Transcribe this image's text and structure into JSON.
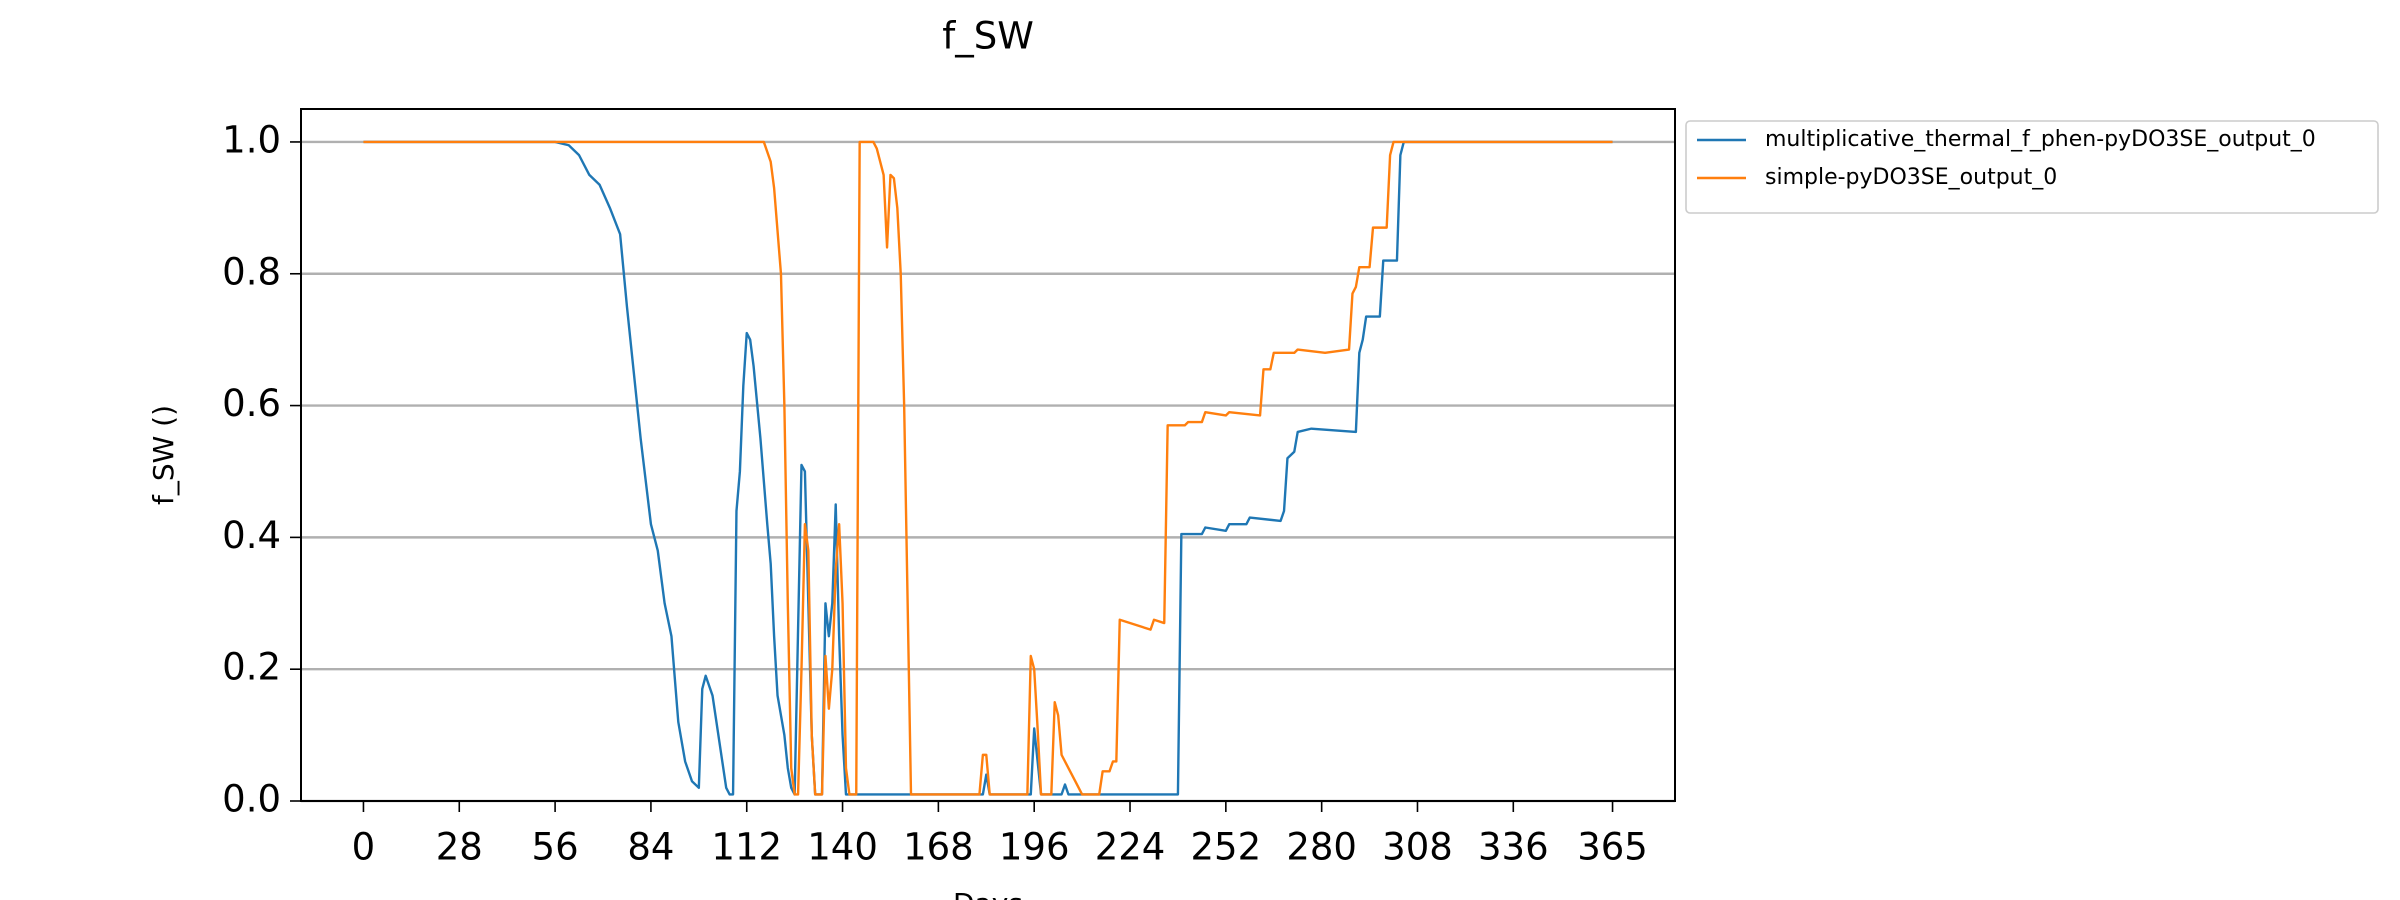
{
  "chart_data": {
    "type": "line",
    "title": "f_SW",
    "xlabel": "Days",
    "ylabel": "f_SW ()",
    "xlim": [
      -18.25,
      383.25
    ],
    "ylim": [
      0,
      1.05
    ],
    "xticks": [
      0,
      28,
      56,
      84,
      112,
      140,
      168,
      196,
      224,
      252,
      280,
      308,
      336,
      365
    ],
    "yticks": [
      {
        "value": 0,
        "label": "0.0"
      },
      0.2,
      0.4,
      0.6,
      0.8,
      {
        "value": 1,
        "label": "1.0"
      }
    ],
    "grid": "y",
    "legend": "outside-upper-right",
    "series": [
      {
        "name": "multiplicative_thermal_f_phen-pyDO3SE_output_0",
        "color": "#1f77b4",
        "x": [
          0,
          56,
          60,
          63,
          66,
          69,
          72,
          75,
          77,
          79,
          81,
          84,
          86,
          88,
          90,
          92,
          94,
          96,
          98,
          99,
          100,
          102,
          104,
          106,
          107,
          108,
          109,
          110,
          111,
          112,
          113,
          114,
          116,
          118,
          119,
          120,
          121,
          123,
          124,
          125,
          126,
          128,
          129,
          130,
          131,
          132,
          134,
          135,
          136,
          137,
          138,
          139,
          140,
          141,
          181,
          182,
          183,
          195,
          196,
          197,
          198,
          204,
          205,
          206,
          238,
          239,
          245,
          246,
          252,
          253,
          258,
          259,
          268,
          269,
          270,
          272,
          273,
          277,
          290,
          291,
          292,
          293,
          297,
          298,
          302,
          303,
          304,
          365
        ],
        "values": [
          1,
          1,
          0.995,
          0.98,
          0.95,
          0.935,
          0.9,
          0.86,
          0.75,
          0.65,
          0.55,
          0.42,
          0.38,
          0.3,
          0.25,
          0.12,
          0.06,
          0.03,
          0.02,
          0.17,
          0.19,
          0.16,
          0.09,
          0.02,
          0.01,
          0.01,
          0.44,
          0.5,
          0.63,
          0.71,
          0.7,
          0.66,
          0.55,
          0.42,
          0.36,
          0.25,
          0.16,
          0.1,
          0.05,
          0.02,
          0.01,
          0.51,
          0.5,
          0.3,
          0.1,
          0.01,
          0.01,
          0.3,
          0.25,
          0.3,
          0.45,
          0.25,
          0.1,
          0.01,
          0.01,
          0.04,
          0.01,
          0.01,
          0.11,
          0.06,
          0.01,
          0.01,
          0.025,
          0.01,
          0.01,
          0.405,
          0.405,
          0.415,
          0.41,
          0.42,
          0.42,
          0.43,
          0.425,
          0.44,
          0.52,
          0.53,
          0.56,
          0.565,
          0.56,
          0.68,
          0.7,
          0.735,
          0.735,
          0.82,
          0.82,
          0.98,
          1,
          1
        ]
      },
      {
        "name": "simple-pyDO3SE_output_0",
        "color": "#ff7f0e",
        "x": [
          0,
          117,
          119,
          120,
          122,
          123,
          124,
          125,
          126,
          127,
          128,
          129,
          130,
          131,
          132,
          134,
          135,
          136,
          137,
          138,
          139,
          140,
          141,
          142,
          144,
          145,
          149,
          150,
          152,
          153,
          154,
          155,
          156,
          157,
          158,
          160,
          180,
          181,
          182,
          183,
          194,
          195,
          196,
          197,
          198,
          201,
          202,
          203,
          204,
          206,
          208,
          210,
          215,
          216,
          218,
          219,
          220,
          221,
          230,
          231,
          234,
          235,
          240,
          241,
          245,
          246,
          252,
          253,
          262,
          263,
          265,
          266,
          272,
          273,
          281,
          288,
          289,
          290,
          291,
          294,
          295,
          299,
          300,
          301,
          365
        ],
        "values": [
          1,
          1,
          0.97,
          0.93,
          0.8,
          0.6,
          0.3,
          0.05,
          0.01,
          0.01,
          0.2,
          0.42,
          0.38,
          0.1,
          0.01,
          0.01,
          0.22,
          0.14,
          0.2,
          0.35,
          0.42,
          0.3,
          0.05,
          0.01,
          0.01,
          1,
          1,
          0.99,
          0.95,
          0.84,
          0.95,
          0.945,
          0.9,
          0.8,
          0.6,
          0.01,
          0.01,
          0.07,
          0.07,
          0.01,
          0.01,
          0.22,
          0.2,
          0.11,
          0.01,
          0.01,
          0.15,
          0.13,
          0.07,
          0.05,
          0.03,
          0.01,
          0.01,
          0.045,
          0.045,
          0.06,
          0.06,
          0.275,
          0.26,
          0.275,
          0.27,
          0.57,
          0.57,
          0.575,
          0.575,
          0.59,
          0.585,
          0.59,
          0.585,
          0.655,
          0.655,
          0.68,
          0.68,
          0.685,
          0.68,
          0.685,
          0.77,
          0.78,
          0.81,
          0.81,
          0.87,
          0.87,
          0.98,
          1,
          1
        ]
      }
    ]
  }
}
